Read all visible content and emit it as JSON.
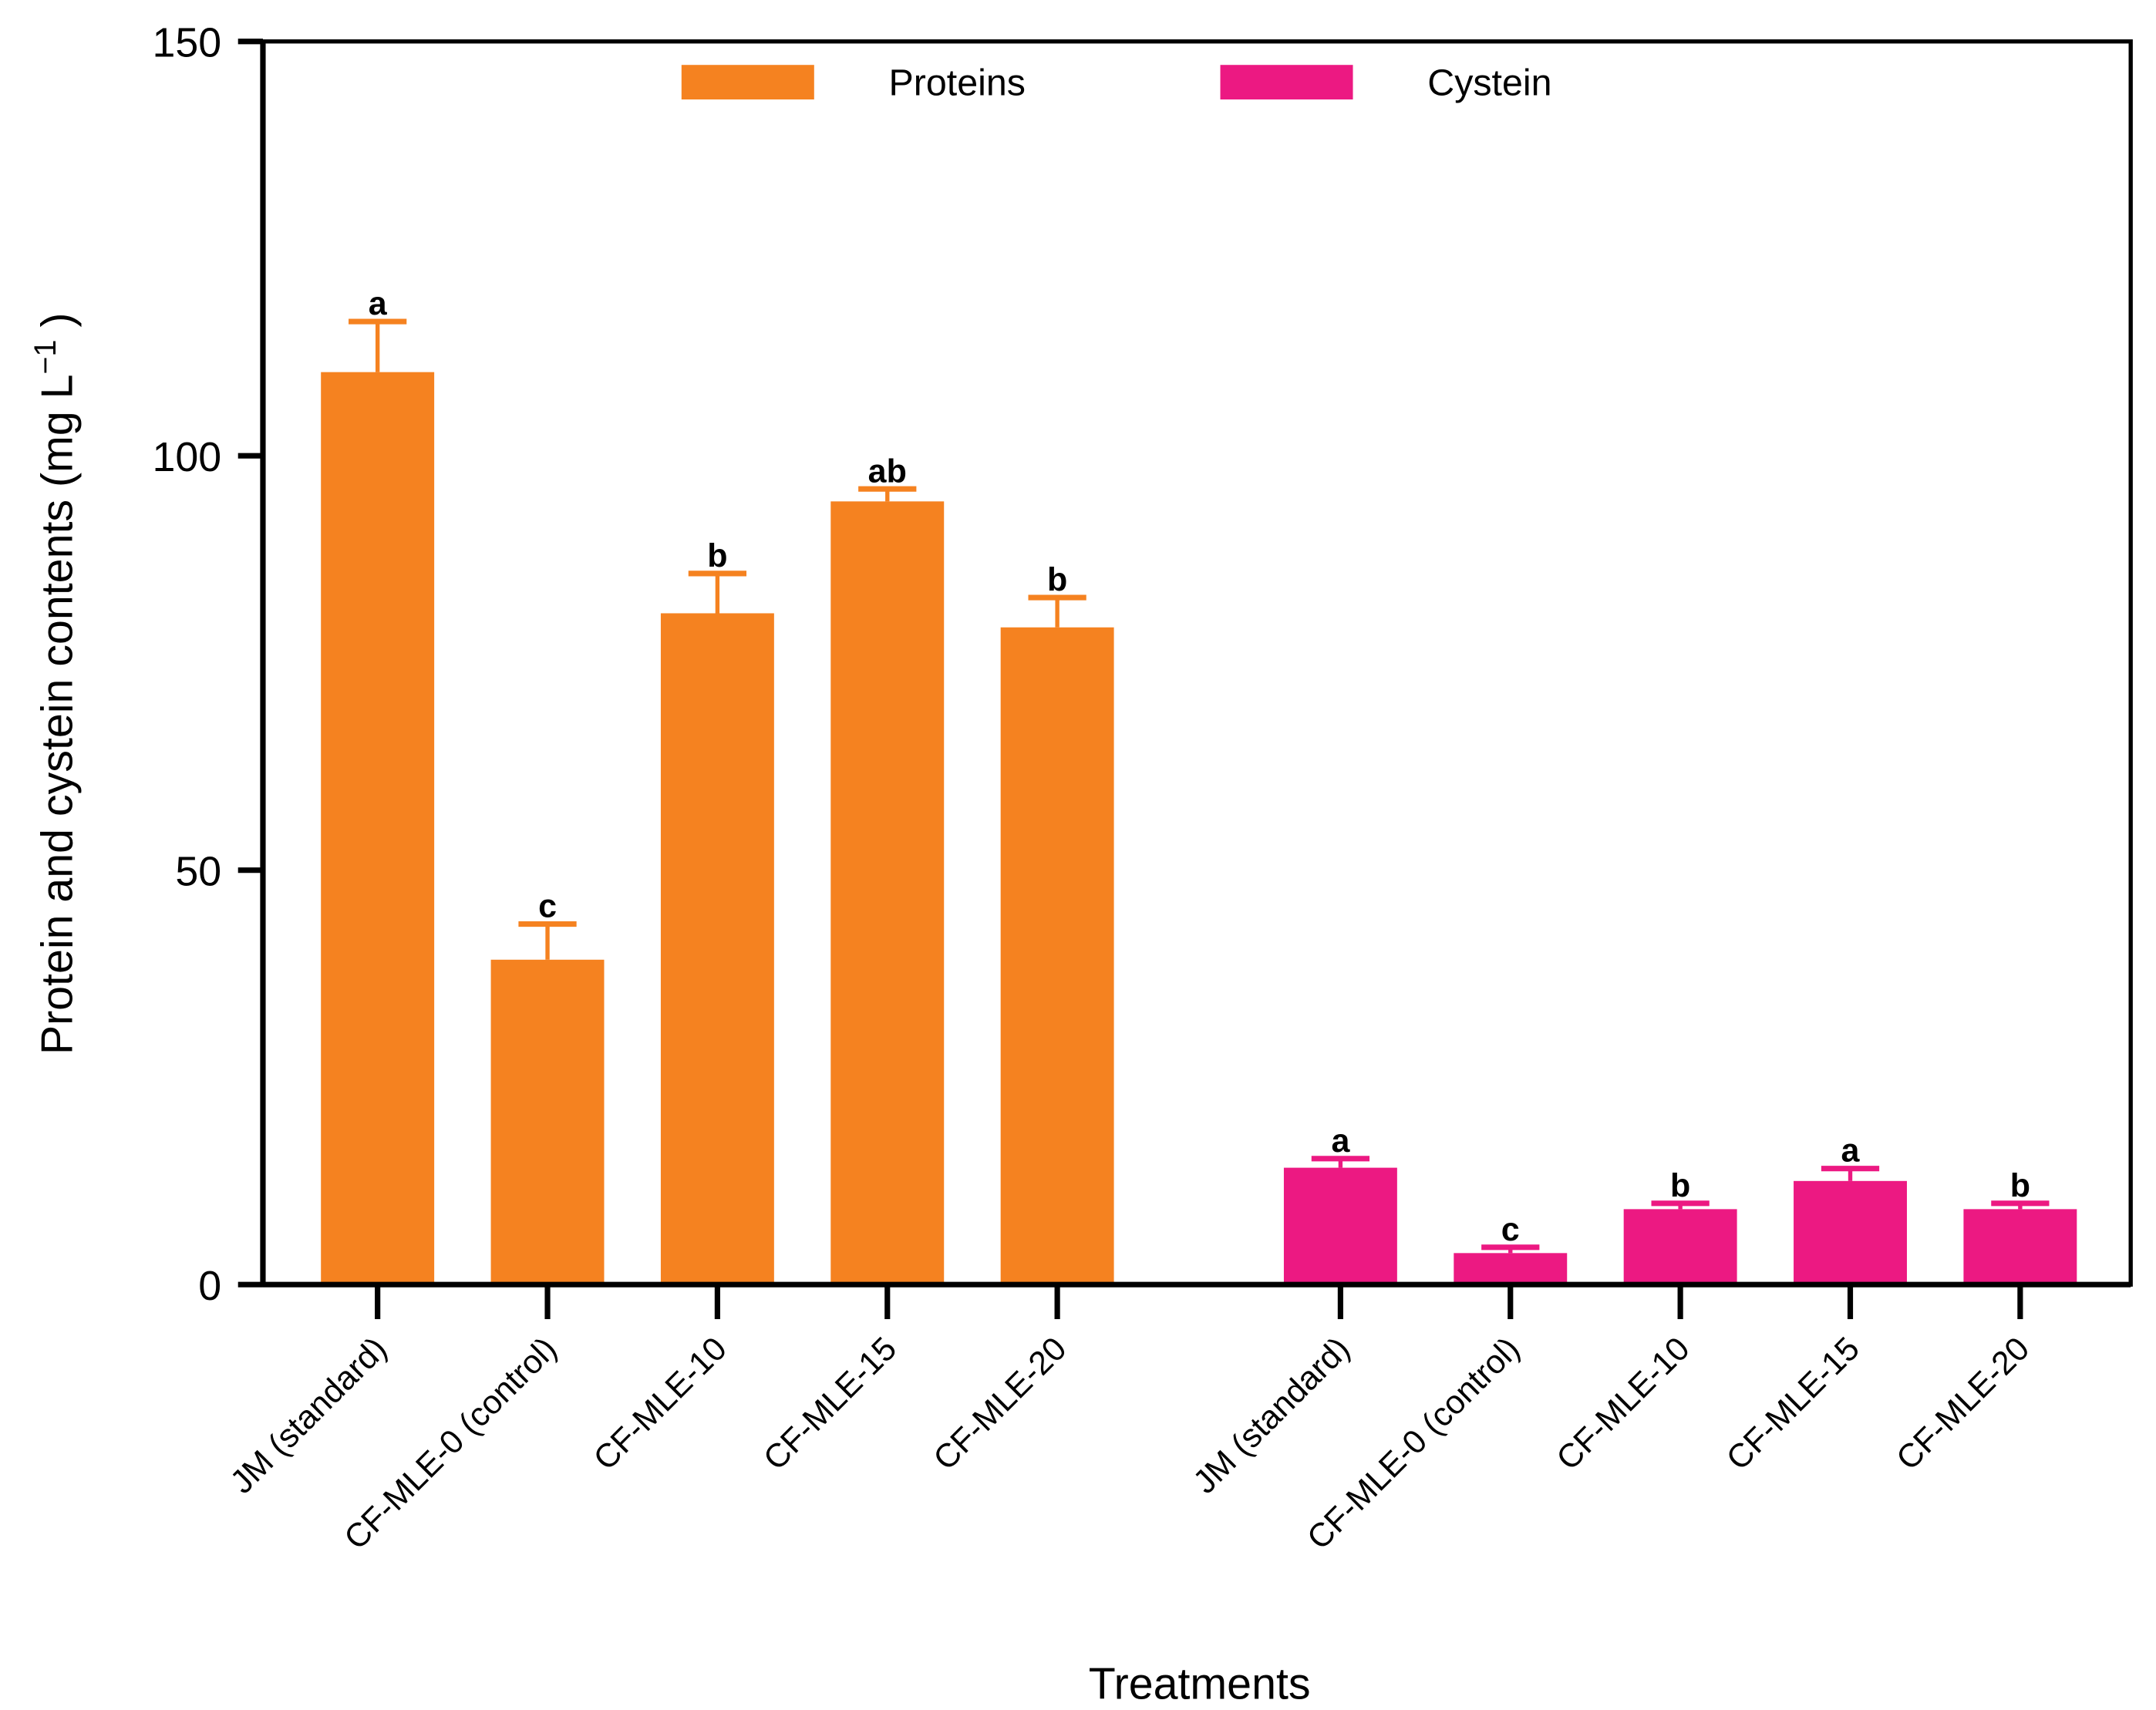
{
  "chart_data": {
    "type": "bar",
    "xlabel": "Treatments",
    "ylabel": "Protein and cystein contents (mg L",
    "ylabel_superscript": "−1",
    "ylabel_suffix": " )",
    "ylim": [
      0,
      150
    ],
    "yticks": [
      0,
      50,
      100,
      150
    ],
    "grid": false,
    "legend_position": "top",
    "categories": [
      "JM (standard)",
      "CF-MLE-0 (control)",
      "CF-MLE-10",
      "CF-MLE-15",
      "CF-MLE-20"
    ],
    "series": [
      {
        "name": "Proteins",
        "color": "#F58220",
        "values": [
          110.1,
          39.2,
          81.0,
          94.5,
          79.3
        ],
        "error_upper": [
          116.2,
          43.5,
          85.8,
          96.0,
          82.9
        ],
        "letters": [
          "a",
          "c",
          "b",
          "ab",
          "b"
        ]
      },
      {
        "name": "Cystein",
        "color": "#EC1982",
        "values": [
          14.1,
          3.8,
          9.1,
          12.5,
          9.1
        ],
        "error_upper": [
          15.2,
          4.5,
          9.8,
          14.0,
          9.8
        ],
        "letters": [
          "a",
          "c",
          "b",
          "a",
          "b"
        ]
      }
    ]
  }
}
